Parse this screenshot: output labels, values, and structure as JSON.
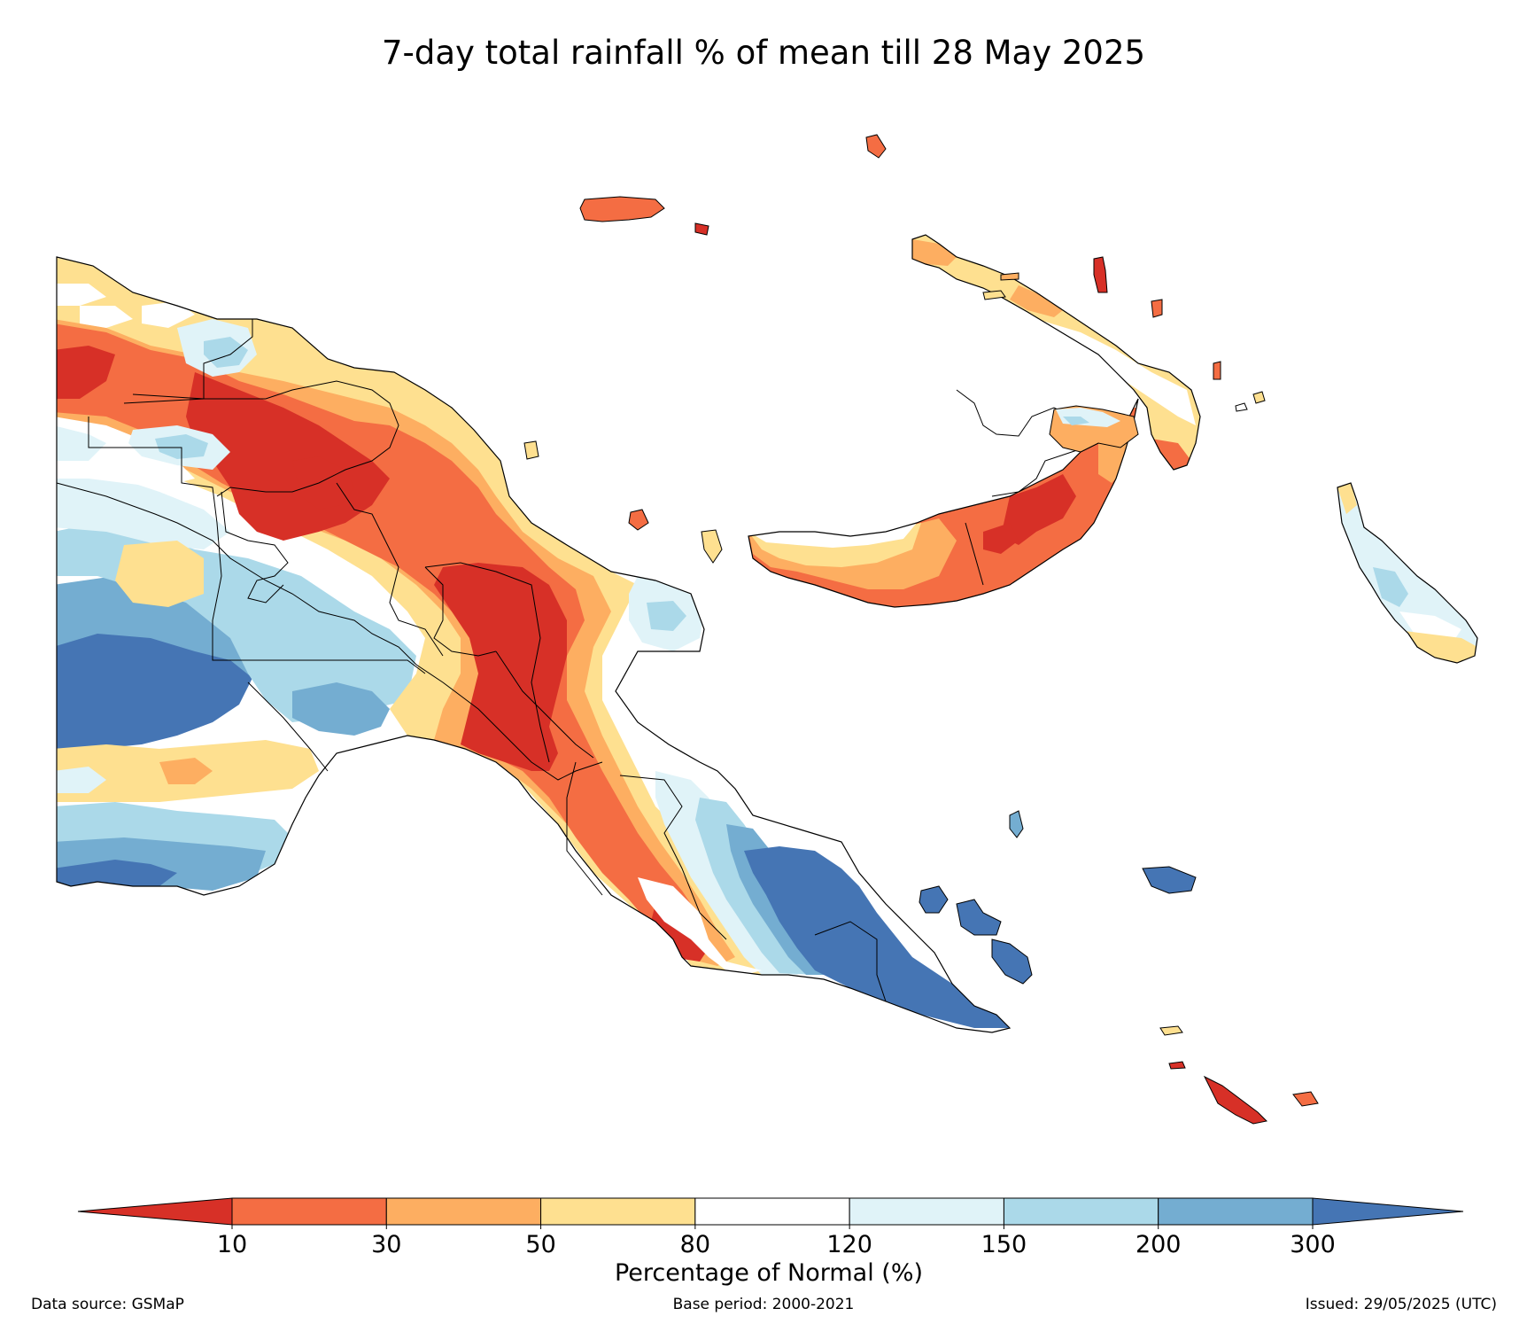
{
  "title": "7-day total rainfall % of mean till 28 May 2025",
  "colorbar": {
    "label": "Percentage of Normal (%)",
    "ticks": [
      "10",
      "30",
      "50",
      "80",
      "120",
      "150",
      "200",
      "300"
    ],
    "colors": [
      "#d73027",
      "#f46d43",
      "#fdae61",
      "#fee090",
      "#ffffff",
      "#e0f3f8",
      "#abd9e9",
      "#74add1",
      "#4575b4"
    ]
  },
  "footer": {
    "source": "Data source: GSMaP",
    "base_period": "Base period: 2000-2021",
    "issued": "Issued: 29/05/2025 (UTC)"
  }
}
